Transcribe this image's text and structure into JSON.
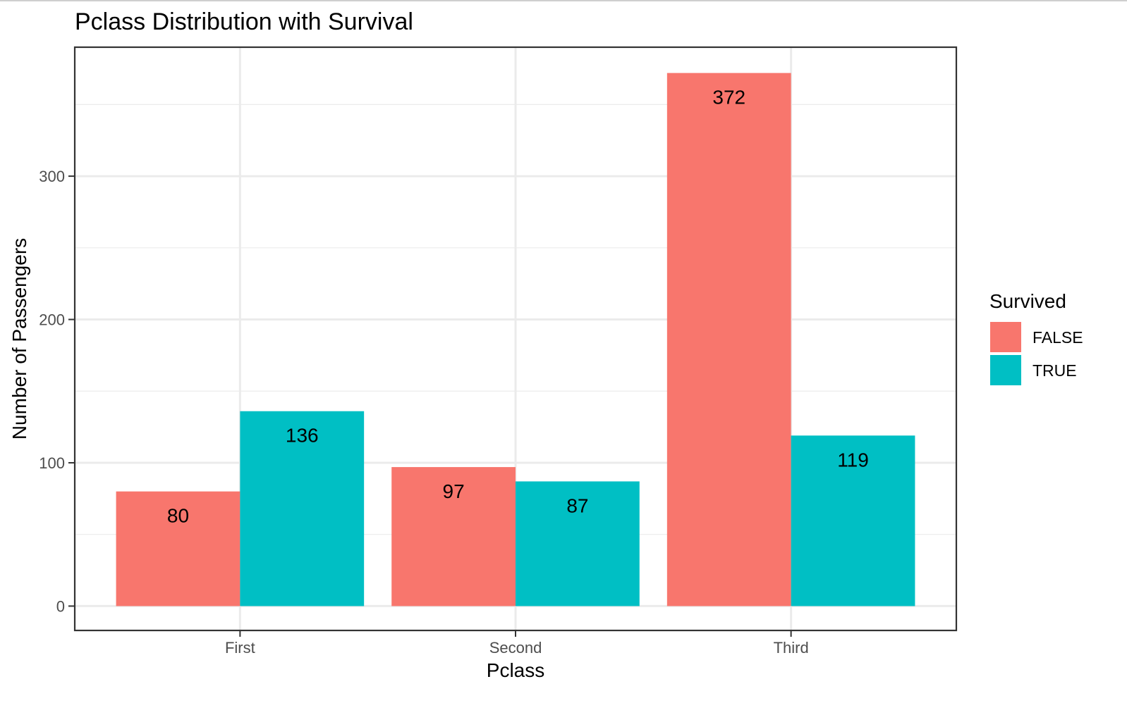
{
  "chart_data": {
    "type": "bar",
    "title": "Pclass Distribution with Survival",
    "xlabel": "Pclass",
    "ylabel": "Number of Passengers",
    "categories": [
      "First",
      "Second",
      "Third"
    ],
    "series": [
      {
        "name": "FALSE",
        "values": [
          80,
          97,
          372
        ],
        "color": "#F8766D"
      },
      {
        "name": "TRUE",
        "values": [
          136,
          87,
          119
        ],
        "color": "#00BFC4"
      }
    ],
    "ylim": [
      -17,
      390
    ],
    "yticks": [
      0,
      100,
      200,
      300
    ],
    "grid": true,
    "legend": {
      "title": "Survived",
      "placement": "right"
    }
  }
}
